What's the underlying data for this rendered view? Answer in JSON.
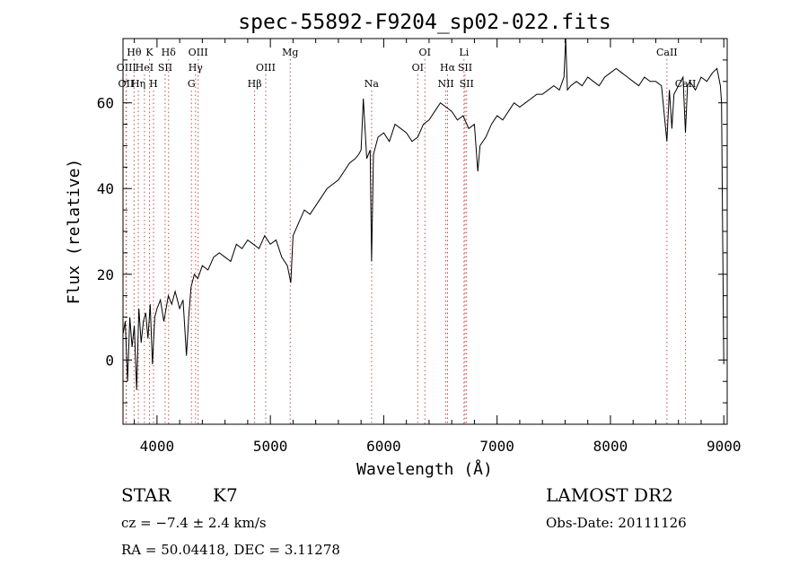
{
  "chart_data": {
    "type": "line",
    "title": "spec-55892-F9204_sp02-022.fits",
    "xlabel": "Wavelength (Å)",
    "ylabel": "Flux (relative)",
    "xlim": [
      3700,
      9030
    ],
    "ylim": [
      -15,
      75
    ],
    "xticks": [
      4000,
      5000,
      6000,
      7000,
      8000,
      9000
    ],
    "yticks": [
      0,
      20,
      40,
      60
    ],
    "grid": false,
    "line_color": "#000000",
    "marker_color": "#c0504d",
    "series": [
      {
        "x": [
          3700,
          3720,
          3740,
          3760,
          3780,
          3800,
          3820,
          3840,
          3860,
          3880,
          3900,
          3920,
          3940,
          3960,
          3980,
          4000,
          4030,
          4060,
          4100,
          4130,
          4160,
          4200,
          4230,
          4260,
          4280,
          4300,
          4330,
          4360,
          4400,
          4450,
          4500,
          4550,
          4600,
          4650,
          4700,
          4750,
          4800,
          4850,
          4900,
          4950,
          5000,
          5050,
          5100,
          5150,
          5180,
          5200,
          5250,
          5300,
          5350,
          5400,
          5450,
          5500,
          5550,
          5600,
          5650,
          5700,
          5750,
          5780,
          5800,
          5820,
          5850,
          5880,
          5893,
          5910,
          5950,
          6000,
          6050,
          6100,
          6150,
          6200,
          6250,
          6300,
          6350,
          6400,
          6450,
          6500,
          6550,
          6600,
          6650,
          6700,
          6750,
          6800,
          6830,
          6850,
          6900,
          6950,
          7000,
          7050,
          7100,
          7150,
          7200,
          7250,
          7300,
          7350,
          7400,
          7450,
          7500,
          7550,
          7590,
          7605,
          7620,
          7650,
          7700,
          7750,
          7800,
          7850,
          7900,
          7950,
          8000,
          8050,
          8100,
          8150,
          8200,
          8250,
          8300,
          8350,
          8400,
          8450,
          8498,
          8520,
          8542,
          8560,
          8600,
          8640,
          8662,
          8680,
          8700,
          8750,
          8800,
          8850,
          8900,
          8940,
          8970,
          8980,
          8990,
          9000
        ],
        "y": [
          6,
          9,
          -5,
          10,
          3,
          8,
          -7,
          12,
          4,
          9,
          11,
          5,
          13,
          -1,
          10,
          12,
          14,
          9,
          15,
          13,
          16,
          12,
          14,
          1,
          10,
          17,
          20,
          19,
          22,
          21,
          24,
          25,
          24,
          23,
          27,
          26,
          28,
          27,
          26,
          29,
          27,
          28,
          24,
          22,
          18,
          29,
          32,
          35,
          34,
          36,
          38,
          40,
          41,
          42,
          44,
          46,
          47,
          48,
          49,
          61,
          47,
          49,
          23,
          48,
          52,
          53,
          51,
          55,
          54,
          53,
          51,
          52,
          55,
          56,
          58,
          60,
          59,
          58,
          56,
          57,
          54,
          55,
          44,
          50,
          52,
          55,
          57,
          56,
          58,
          60,
          59,
          60,
          61,
          62,
          62,
          63,
          64,
          63,
          66,
          75,
          63,
          64,
          65,
          64,
          66,
          65,
          64,
          66,
          67,
          68,
          67,
          66,
          65,
          64,
          66,
          65,
          65,
          64,
          51,
          63,
          54,
          62,
          64,
          66,
          53,
          64,
          65,
          63,
          66,
          65,
          67,
          68,
          64,
          60,
          30,
          -1
        ]
      }
    ],
    "line_markers": [
      {
        "label": "OII",
        "x": 3727,
        "row": 2
      },
      {
        "label": "OIII",
        "x": 3730,
        "row": 1
      },
      {
        "label": "Hθ",
        "x": 3798,
        "row": 0
      },
      {
        "label": "Hη",
        "x": 3835,
        "row": 2
      },
      {
        "label": "HeI",
        "x": 3889,
        "row": 1
      },
      {
        "label": "K",
        "x": 3934,
        "row": 0
      },
      {
        "label": "H",
        "x": 3969,
        "row": 2
      },
      {
        "label": "SII",
        "x": 4072,
        "row": 1
      },
      {
        "label": "Hδ",
        "x": 4102,
        "row": 0
      },
      {
        "label": "G",
        "x": 4304,
        "row": 2
      },
      {
        "label": "Hγ",
        "x": 4340,
        "row": 1
      },
      {
        "label": "OIII",
        "x": 4363,
        "row": 0
      },
      {
        "label": "Hβ",
        "x": 4861,
        "row": 2
      },
      {
        "label": "OIII",
        "x": 4959,
        "row": 1
      },
      {
        "label": "Mg",
        "x": 5175,
        "row": 0
      },
      {
        "label": "Na",
        "x": 5893,
        "row": 2
      },
      {
        "label": "OI",
        "x": 6300,
        "row": 1
      },
      {
        "label": "OI",
        "x": 6363,
        "row": 0
      },
      {
        "label": "NII",
        "x": 6548,
        "row": 2
      },
      {
        "label": "Hα",
        "x": 6563,
        "row": 1
      },
      {
        "label": "Li",
        "x": 6708,
        "row": 0
      },
      {
        "label": "SII",
        "x": 6717,
        "row": 1
      },
      {
        "label": "SII",
        "x": 6731,
        "row": 2
      },
      {
        "label": "CaII",
        "x": 8498,
        "row": 0
      },
      {
        "label": "CaII",
        "x": 8662,
        "row": 2
      }
    ]
  },
  "info": {
    "object_class": "STAR",
    "subclass": "K7",
    "cz": "cz = −7.4 ± 2.4 km/s",
    "coords": "RA =  50.04418, DEC =    3.11278",
    "survey": "LAMOST DR2",
    "obs_date": "Obs-Date: 20111126"
  }
}
